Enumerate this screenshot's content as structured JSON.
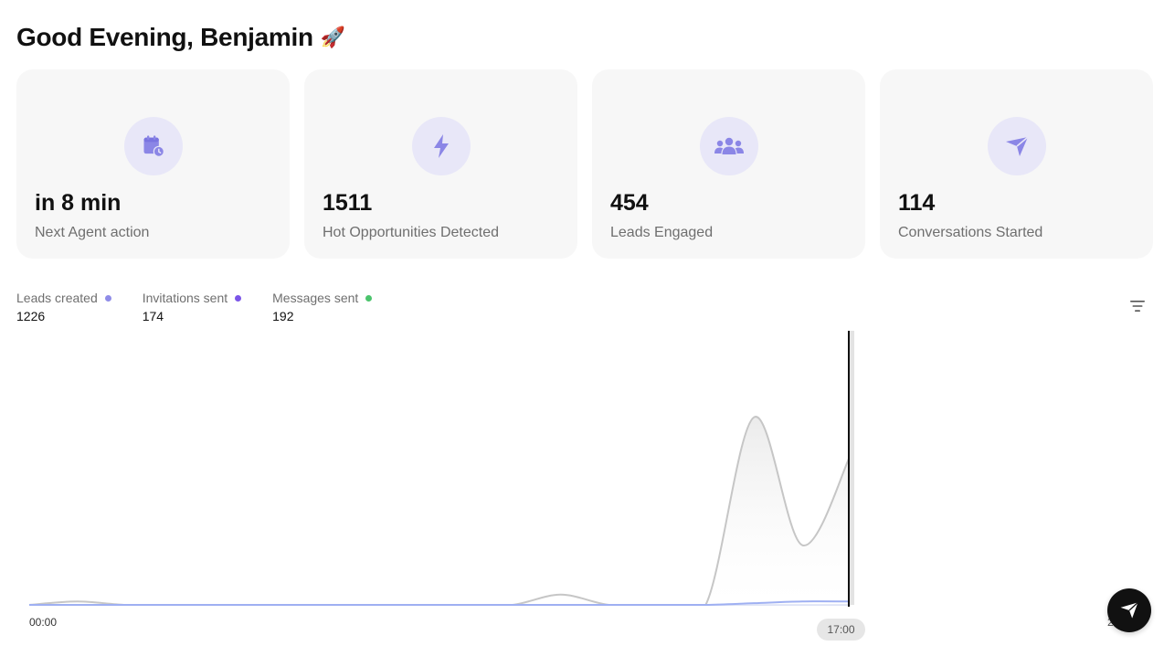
{
  "greeting": {
    "text": "Good Evening, Benjamin",
    "emoji": "🚀"
  },
  "cards": [
    {
      "icon": "calendar-clock-icon",
      "value": "in 8 min",
      "label": "Next Agent action"
    },
    {
      "icon": "lightning-bolt-icon",
      "value": "1511",
      "label": "Hot Opportunities Detected"
    },
    {
      "icon": "users-group-icon",
      "value": "454",
      "label": "Leads Engaged"
    },
    {
      "icon": "paper-plane-icon",
      "value": "114",
      "label": "Conversations Started"
    }
  ],
  "colors": {
    "accent": "#8b86e6",
    "icon_bg": "#e8e7f8",
    "card_bg": "#f7f7f7",
    "leads": "#8f8ce8",
    "invitations": "#7b55e8",
    "messages": "#4bc46c"
  },
  "legend": [
    {
      "name": "Leads created",
      "value": "1226",
      "color": "#8f8ce8"
    },
    {
      "name": "Invitations sent",
      "value": "174",
      "color": "#7b55e8"
    },
    {
      "name": "Messages sent",
      "value": "192",
      "color": "#4bc46c"
    }
  ],
  "chart_data": {
    "type": "area",
    "x_ticks": [
      "00:00",
      "17:00",
      "2"
    ],
    "current_marker": "17:00",
    "series": [
      {
        "name": "Leads created",
        "x": [
          0,
          1,
          2,
          3,
          4,
          5,
          6,
          7,
          8,
          9,
          10,
          11,
          12,
          13,
          14,
          15,
          16,
          17
        ],
        "values": [
          0,
          2,
          0,
          0,
          0,
          0,
          0,
          0,
          0,
          0,
          0,
          6,
          0,
          0,
          0,
          110,
          35,
          88
        ]
      },
      {
        "name": "Invitations sent",
        "x": [
          0,
          1,
          2,
          3,
          4,
          5,
          6,
          7,
          8,
          9,
          10,
          11,
          12,
          13,
          14,
          15,
          16,
          17
        ],
        "values": [
          0,
          0,
          0,
          0,
          0,
          0,
          0,
          0,
          0,
          0,
          0,
          0,
          0,
          0,
          0,
          1,
          2,
          2
        ]
      }
    ],
    "ylim": [
      0,
      150
    ]
  },
  "ticks": {
    "start": "00:00",
    "now": "17:00",
    "end": "2"
  }
}
